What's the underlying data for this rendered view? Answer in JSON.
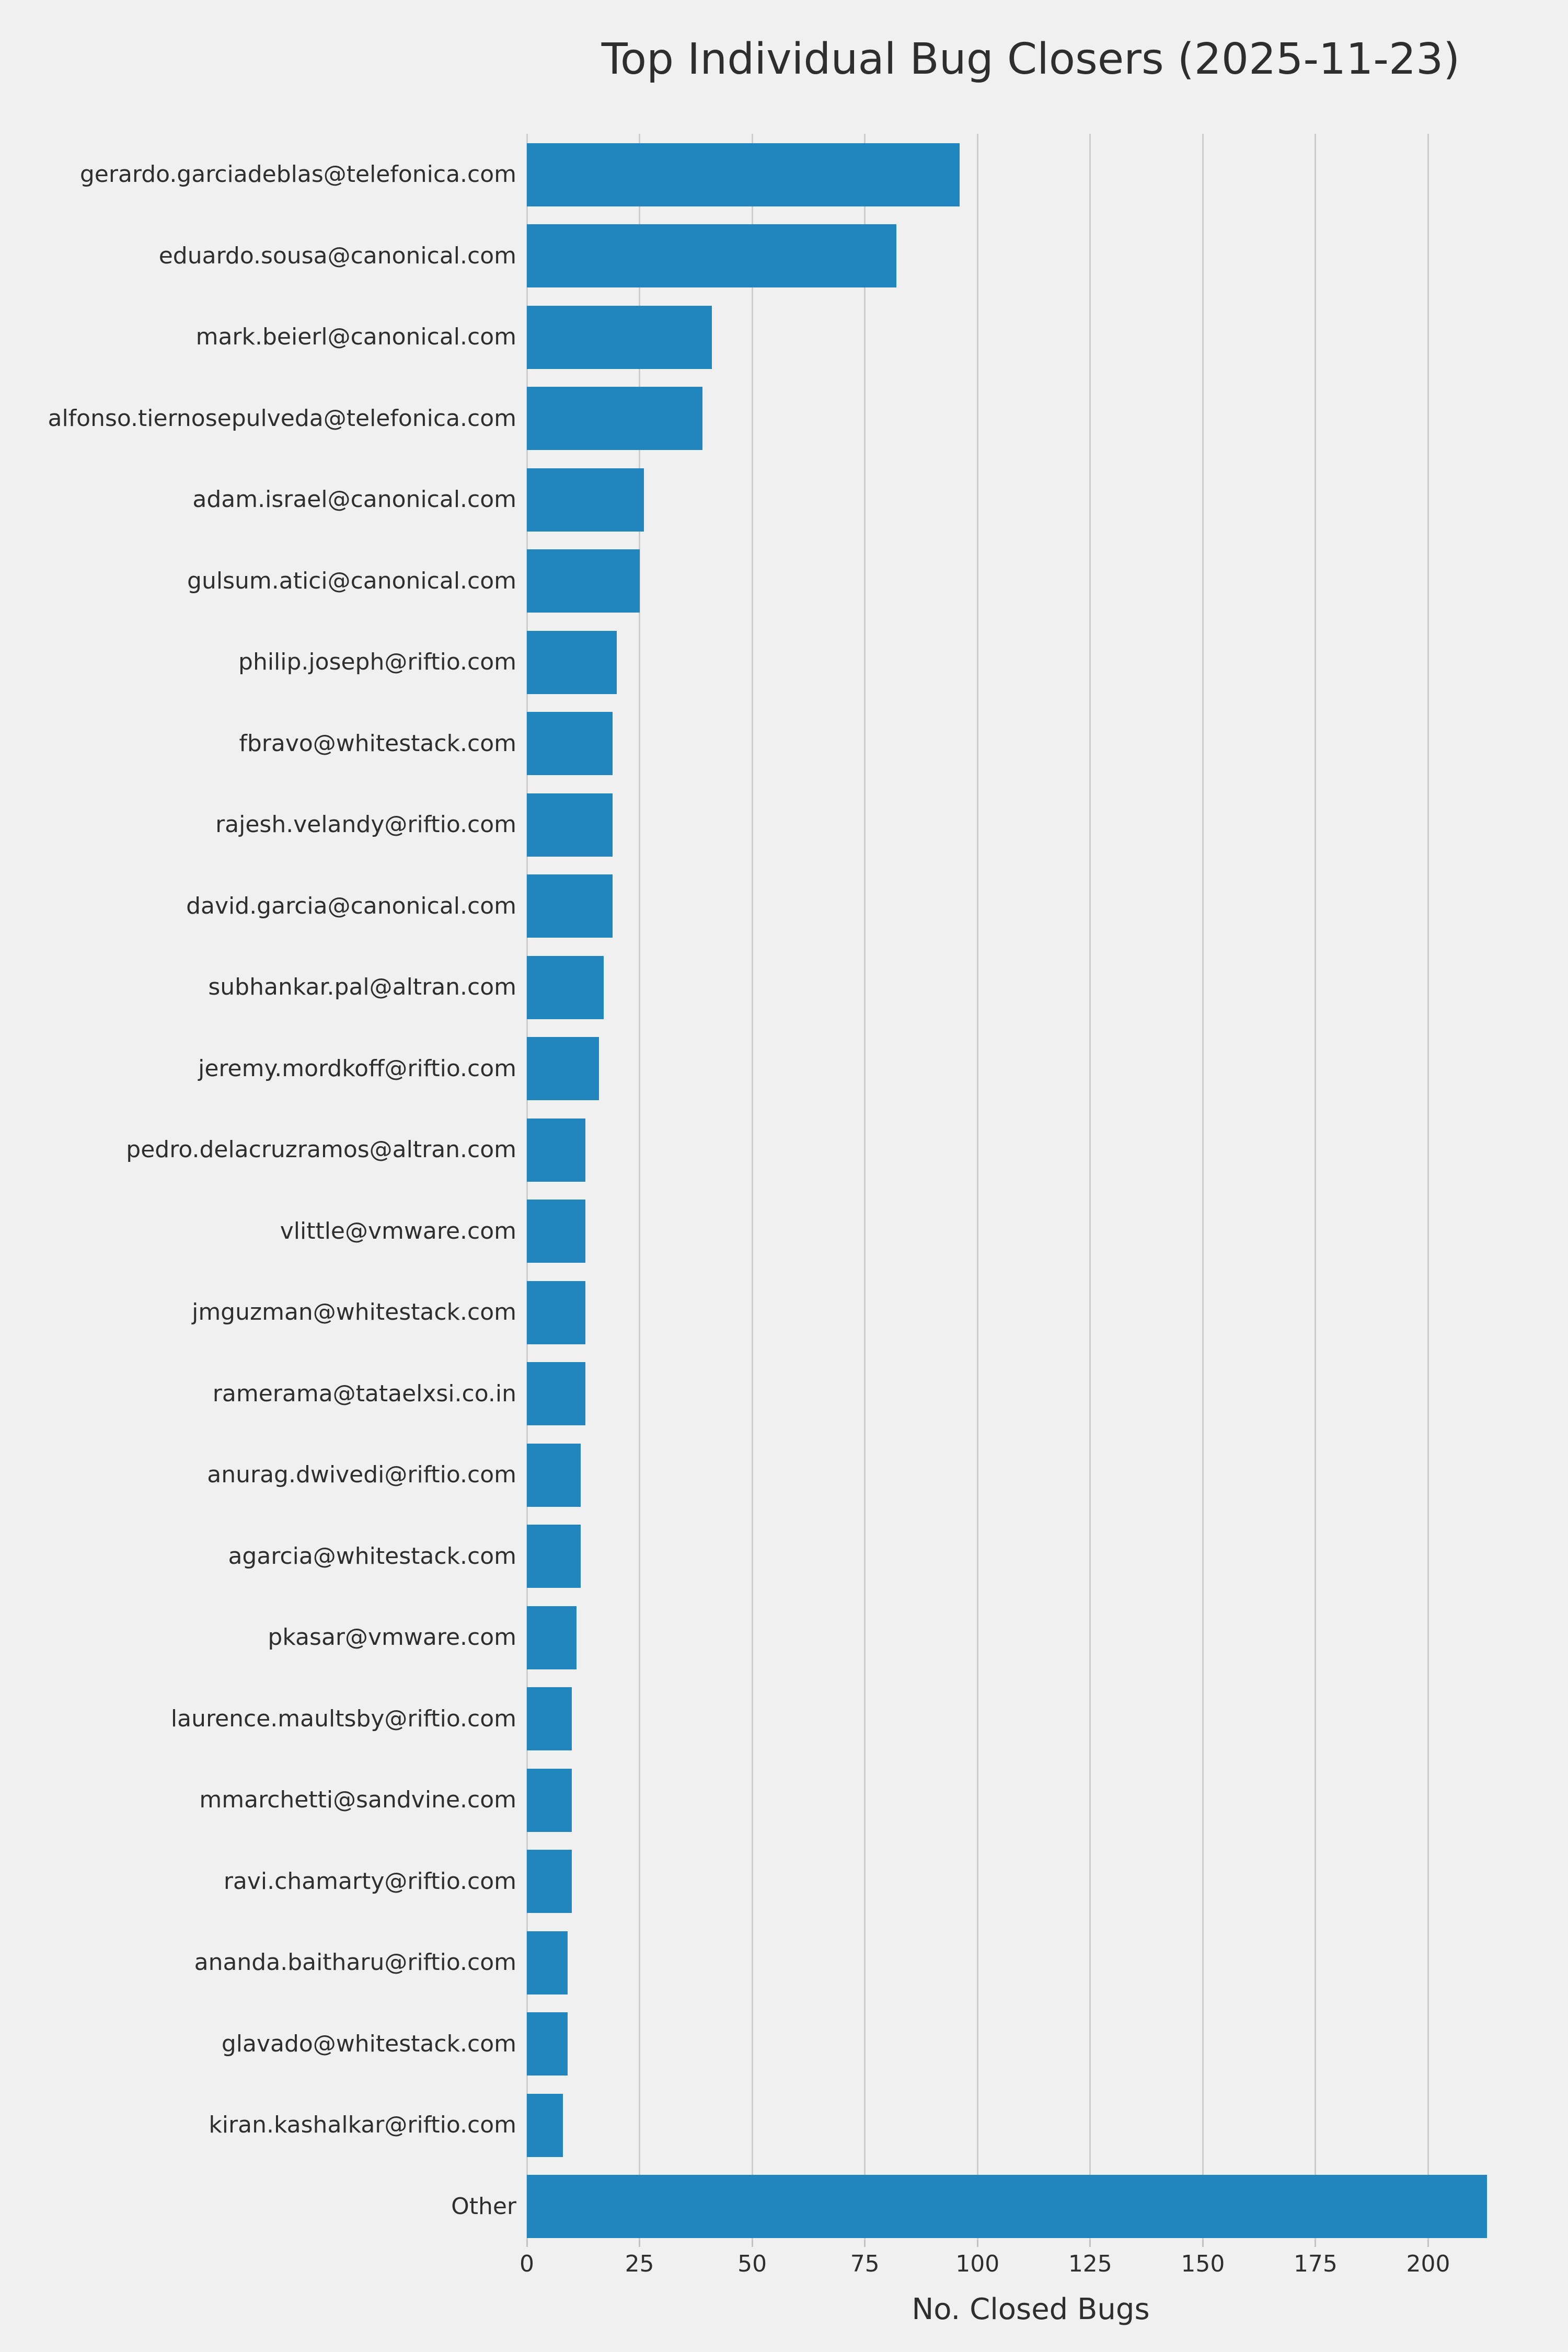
{
  "chart_data": {
    "type": "bar",
    "orientation": "horizontal",
    "title": "Top Individual Bug Closers (2025-11-23)",
    "xlabel": "No. Closed Bugs",
    "categories": [
      "gerardo.garciadeblas@telefonica.com",
      "eduardo.sousa@canonical.com",
      "mark.beierl@canonical.com",
      "alfonso.tiernosepulveda@telefonica.com",
      "adam.israel@canonical.com",
      "gulsum.atici@canonical.com",
      "philip.joseph@riftio.com",
      "fbravo@whitestack.com",
      "rajesh.velandy@riftio.com",
      "david.garcia@canonical.com",
      "subhankar.pal@altran.com",
      "jeremy.mordkoff@riftio.com",
      "pedro.delacruzramos@altran.com",
      "vlittle@vmware.com",
      "jmguzman@whitestack.com",
      "ramerama@tataelxsi.co.in",
      "anurag.dwivedi@riftio.com",
      "agarcia@whitestack.com",
      "pkasar@vmware.com",
      "laurence.maultsby@riftio.com",
      "mmarchetti@sandvine.com",
      "ravi.chamarty@riftio.com",
      "ananda.baitharu@riftio.com",
      "glavado@whitestack.com",
      "kiran.kashalkar@riftio.com",
      "Other"
    ],
    "values": [
      96,
      82,
      41,
      39,
      26,
      25,
      20,
      19,
      19,
      19,
      17,
      16,
      13,
      13,
      13,
      13,
      12,
      12,
      11,
      10,
      10,
      10,
      9,
      9,
      8,
      213
    ],
    "xticks": [
      0,
      25,
      50,
      75,
      100,
      125,
      150,
      175,
      200
    ],
    "xlim": [
      0,
      223.6
    ],
    "grid": true,
    "legend": "none",
    "colors": {
      "bar": "#2186bd",
      "background": "#f0f0f0",
      "grid": "#cccccc",
      "tick": "#c2c2c2",
      "text": "#2e2e2e"
    }
  }
}
